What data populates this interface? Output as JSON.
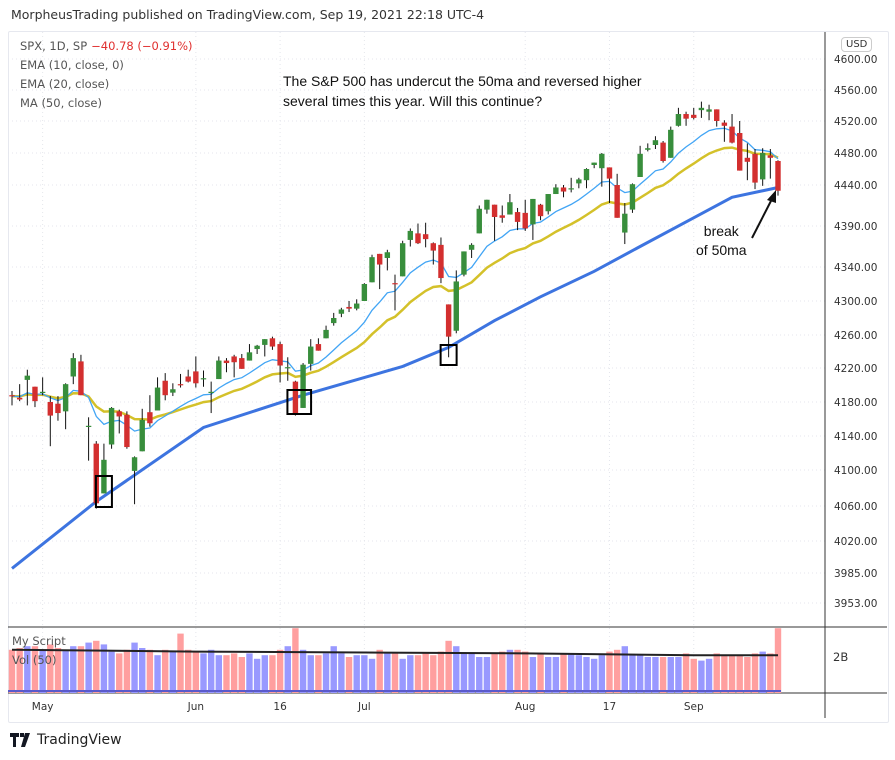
{
  "header": {
    "published": "MorpheusTrading published on TradingView.com, Sep 19, 2021 22:18 UTC-4"
  },
  "legend": {
    "symbol": "SPX, 1D, SP",
    "change": "−40.78 (−0.91%)",
    "ema10": "EMA (10, close, 0)",
    "ema20": "EMA (20, close)",
    "ma50": "MA (50, close)",
    "script": "My Script",
    "vol": "Vol (50)"
  },
  "annotation": {
    "line1": "The S&P 500 has undercut the 50ma and reversed higher",
    "line2": "several times this year.  Will this continue?",
    "break1": "break",
    "break2": "of 50ma"
  },
  "axis": {
    "currency": "USD",
    "volume_tick": "2B"
  },
  "footer": {
    "brand": "TradingView"
  },
  "colors": {
    "up": "#388e3c",
    "down": "#d32f2f",
    "ema10": "#42a5f5",
    "ema20": "#d4c12a",
    "ma50": "#3d74e0",
    "vol_up": "#9999ff",
    "vol_down": "#ff9f9f",
    "vol_ma": "#222222"
  },
  "chart_data": {
    "type": "candlestick",
    "scale": "log",
    "grid": true,
    "y_ticks": [
      "4600.00",
      "4560.00",
      "4520.00",
      "4480.00",
      "4440.00",
      "4390.00",
      "4340.00",
      "4300.00",
      "4260.00",
      "4220.00",
      "4180.00",
      "4140.00",
      "4100.00",
      "4060.00",
      "4020.00",
      "3985.00",
      "3953.00"
    ],
    "x_ticks": [
      {
        "label": "May",
        "date": "2021-05-03"
      },
      {
        "label": "Jun",
        "date": "2021-06-01"
      },
      {
        "label": "16",
        "date": "2021-06-16"
      },
      {
        "label": "Jul",
        "date": "2021-07-01"
      },
      {
        "label": "Aug",
        "date": "2021-08-02"
      },
      {
        "label": "17",
        "date": "2021-08-17"
      },
      {
        "label": "Sep",
        "date": "2021-09-01"
      }
    ],
    "candles_fields": [
      "date",
      "open",
      "high",
      "low",
      "close"
    ],
    "candles": [
      [
        "2021-04-27",
        4188,
        4193,
        4176,
        4187
      ],
      [
        "2021-04-28",
        4185,
        4201,
        4181,
        4183
      ],
      [
        "2021-04-29",
        4206,
        4218,
        4176,
        4211
      ],
      [
        "2021-04-30",
        4198,
        4198,
        4174,
        4181
      ],
      [
        "2021-05-03",
        4191,
        4209,
        4188,
        4192
      ],
      [
        "2021-05-04",
        4180,
        4187,
        4128,
        4164
      ],
      [
        "2021-05-05",
        4178,
        4187,
        4158,
        4167
      ],
      [
        "2021-05-06",
        4169,
        4202,
        4148,
        4201
      ],
      [
        "2021-05-07",
        4210,
        4238,
        4201,
        4232
      ],
      [
        "2021-05-10",
        4228,
        4236,
        4188,
        4188
      ],
      [
        "2021-05-11",
        4151,
        4162,
        4111,
        4152
      ],
      [
        "2021-05-12",
        4131,
        4134,
        4057,
        4063
      ],
      [
        "2021-05-13",
        4074,
        4131,
        4074,
        4112
      ],
      [
        "2021-05-14",
        4130,
        4174,
        4125,
        4173
      ],
      [
        "2021-05-17",
        4169,
        4171,
        4143,
        4163
      ],
      [
        "2021-05-18",
        4165,
        4169,
        4125,
        4127
      ],
      [
        "2021-05-19",
        4099,
        4116,
        4062,
        4115
      ],
      [
        "2021-05-20",
        4122,
        4172,
        4122,
        4159
      ],
      [
        "2021-05-21",
        4168,
        4188,
        4151,
        4155
      ],
      [
        "2021-05-24",
        4170,
        4209,
        4170,
        4197
      ],
      [
        "2021-05-25",
        4205,
        4214,
        4182,
        4188
      ],
      [
        "2021-05-26",
        4191,
        4202,
        4187,
        4195
      ],
      [
        "2021-05-27",
        4201,
        4213,
        4197,
        4200
      ],
      [
        "2021-05-28",
        4210,
        4218,
        4203,
        4204
      ],
      [
        "2021-06-01",
        4216,
        4234,
        4197,
        4202
      ],
      [
        "2021-06-02",
        4207,
        4217,
        4198,
        4208
      ],
      [
        "2021-06-03",
        4191,
        4204,
        4167,
        4192
      ],
      [
        "2021-06-04",
        4207,
        4234,
        4207,
        4229
      ],
      [
        "2021-06-07",
        4229,
        4232,
        4215,
        4226
      ],
      [
        "2021-06-08",
        4234,
        4236,
        4209,
        4227
      ],
      [
        "2021-06-09",
        4232,
        4237,
        4219,
        4219
      ],
      [
        "2021-06-10",
        4229,
        4249,
        4229,
        4239
      ],
      [
        "2021-06-11",
        4243,
        4248,
        4237,
        4247
      ],
      [
        "2021-06-14",
        4248,
        4255,
        4234,
        4255
      ],
      [
        "2021-06-15",
        4256,
        4258,
        4242,
        4246
      ],
      [
        "2021-06-16",
        4249,
        4252,
        4203,
        4223
      ],
      [
        "2021-06-17",
        4220,
        4233,
        4205,
        4221
      ],
      [
        "2021-06-18",
        4204,
        4205,
        4164,
        4166
      ],
      [
        "2021-06-21",
        4173,
        4226,
        4173,
        4224
      ],
      [
        "2021-06-22",
        4225,
        4255,
        4217,
        4246
      ],
      [
        "2021-06-23",
        4249,
        4256,
        4241,
        4241
      ],
      [
        "2021-06-24",
        4256,
        4271,
        4256,
        4266
      ],
      [
        "2021-06-25",
        4274,
        4286,
        4271,
        4280
      ],
      [
        "2021-06-28",
        4285,
        4292,
        4281,
        4290
      ],
      [
        "2021-06-29",
        4293,
        4300,
        4287,
        4291
      ],
      [
        "2021-06-30",
        4291,
        4302,
        4289,
        4297
      ],
      [
        "2021-07-01",
        4300,
        4321,
        4300,
        4320
      ],
      [
        "2021-07-02",
        4322,
        4355,
        4322,
        4352
      ],
      [
        "2021-07-06",
        4356,
        4356,
        4314,
        4343
      ],
      [
        "2021-07-07",
        4351,
        4361,
        4336,
        4358
      ],
      [
        "2021-07-08",
        4321,
        4331,
        4289,
        4320
      ],
      [
        "2021-07-09",
        4329,
        4372,
        4329,
        4369
      ],
      [
        "2021-07-12",
        4373,
        4387,
        4365,
        4384
      ],
      [
        "2021-07-13",
        4381,
        4393,
        4368,
        4369
      ],
      [
        "2021-07-14",
        4380,
        4394,
        4364,
        4374
      ],
      [
        "2021-07-15",
        4369,
        4370,
        4343,
        4360
      ],
      [
        "2021-07-16",
        4367,
        4376,
        4321,
        4327
      ],
      [
        "2021-07-19",
        4296,
        4296,
        4233,
        4258
      ],
      [
        "2021-07-20",
        4265,
        4336,
        4262,
        4323
      ],
      [
        "2021-07-21",
        4331,
        4359,
        4329,
        4359
      ],
      [
        "2021-07-22",
        4361,
        4369,
        4351,
        4367
      ],
      [
        "2021-07-23",
        4381,
        4415,
        4381,
        4411
      ],
      [
        "2021-07-26",
        4410,
        4422,
        4405,
        4422
      ],
      [
        "2021-07-27",
        4416,
        4416,
        4372,
        4401
      ],
      [
        "2021-07-28",
        4403,
        4415,
        4394,
        4400
      ],
      [
        "2021-07-29",
        4404,
        4429,
        4404,
        4419
      ],
      [
        "2021-07-30",
        4407,
        4412,
        4385,
        4395
      ],
      [
        "2021-08-02",
        4406,
        4422,
        4384,
        4387
      ],
      [
        "2021-08-03",
        4392,
        4423,
        4373,
        4423
      ],
      [
        "2021-08-04",
        4416,
        4417,
        4397,
        4402
      ],
      [
        "2021-08-05",
        4408,
        4429,
        4404,
        4429
      ],
      [
        "2021-08-06",
        4429,
        4441,
        4429,
        4437
      ],
      [
        "2021-08-09",
        4437,
        4440,
        4425,
        4432
      ],
      [
        "2021-08-10",
        4436,
        4449,
        4431,
        4436
      ],
      [
        "2021-08-11",
        4442,
        4449,
        4436,
        4447
      ],
      [
        "2021-08-12",
        4446,
        4461,
        4436,
        4460
      ],
      [
        "2021-08-13",
        4465,
        4468,
        4461,
        4468
      ],
      [
        "2021-08-16",
        4461,
        4480,
        4438,
        4479
      ],
      [
        "2021-08-17",
        4462,
        4462,
        4418,
        4448
      ],
      [
        "2021-08-18",
        4440,
        4454,
        4400,
        4400
      ],
      [
        "2021-08-19",
        4382,
        4418,
        4368,
        4405
      ],
      [
        "2021-08-20",
        4410,
        4442,
        4406,
        4441
      ],
      [
        "2021-08-23",
        4450,
        4489,
        4450,
        4479
      ],
      [
        "2021-08-24",
        4484,
        4492,
        4482,
        4486
      ],
      [
        "2021-08-25",
        4490,
        4501,
        4485,
        4496
      ],
      [
        "2021-08-26",
        4493,
        4495,
        4468,
        4470
      ],
      [
        "2021-08-27",
        4474,
        4513,
        4474,
        4509
      ],
      [
        "2021-08-30",
        4514,
        4537,
        4513,
        4529
      ],
      [
        "2021-08-31",
        4529,
        4532,
        4514,
        4523
      ],
      [
        "2021-09-01",
        4528,
        4537,
        4522,
        4524
      ],
      [
        "2021-09-02",
        4534,
        4545,
        4524,
        4537
      ],
      [
        "2021-09-03",
        4532,
        4541,
        4521,
        4535
      ],
      [
        "2021-09-07",
        4535,
        4535,
        4513,
        4520
      ],
      [
        "2021-09-08",
        4518,
        4521,
        4494,
        4514
      ],
      [
        "2021-09-09",
        4513,
        4529,
        4492,
        4493
      ],
      [
        "2021-09-10",
        4505,
        4520,
        4458,
        4458
      ],
      [
        "2021-09-13",
        4474,
        4492,
        4446,
        4469
      ],
      [
        "2021-09-14",
        4479,
        4485,
        4435,
        4443
      ],
      [
        "2021-09-15",
        4447,
        4486,
        4439,
        4480
      ],
      [
        "2021-09-16",
        4477,
        4485,
        4448,
        4474
      ],
      [
        "2021-09-17",
        4470,
        4471,
        4427,
        4433
      ]
    ],
    "volume_billions": [
      2.4,
      2.5,
      2.6,
      2.6,
      2.4,
      2.7,
      2.5,
      2.4,
      2.6,
      2.6,
      2.8,
      2.9,
      2.7,
      2.3,
      2.2,
      2.4,
      2.8,
      2.5,
      2.4,
      2.1,
      2.4,
      2.3,
      3.3,
      2.4,
      2.3,
      2.2,
      2.4,
      2.1,
      2.1,
      2.2,
      2.0,
      2.2,
      1.9,
      2.1,
      2.1,
      2.4,
      2.6,
      3.6,
      2.4,
      2.1,
      2.1,
      2.2,
      2.6,
      2.2,
      2.0,
      2.1,
      2.1,
      1.9,
      2.4,
      2.2,
      2.2,
      1.9,
      2.1,
      2.1,
      2.2,
      2.1,
      2.3,
      2.9,
      2.6,
      2.2,
      2.2,
      2.0,
      2.0,
      2.2,
      2.3,
      2.4,
      2.4,
      2.3,
      2.0,
      2.2,
      2.0,
      2.0,
      2.2,
      2.2,
      2.1,
      2.0,
      1.9,
      2.1,
      2.3,
      2.4,
      2.6,
      2.1,
      2.1,
      2.0,
      2.0,
      2.0,
      2.0,
      2.0,
      2.2,
      1.9,
      1.8,
      1.9,
      2.2,
      2.1,
      2.1,
      2.1,
      2.0,
      2.2,
      2.3,
      2.2,
      3.6
    ],
    "volume_ma50": [
      {
        "date": "2021-04-27",
        "value": 2.4
      },
      {
        "date": "2021-06-01",
        "value": 2.3
      },
      {
        "date": "2021-07-01",
        "value": 2.25
      },
      {
        "date": "2021-08-02",
        "value": 2.2
      },
      {
        "date": "2021-09-01",
        "value": 2.1
      },
      {
        "date": "2021-09-17",
        "value": 2.1
      }
    ],
    "ma50": [
      {
        "date": "2021-04-27",
        "value": 3990
      },
      {
        "date": "2021-05-12",
        "value": 4065
      },
      {
        "date": "2021-06-02",
        "value": 4150
      },
      {
        "date": "2021-06-21",
        "value": 4188
      },
      {
        "date": "2021-07-09",
        "value": 4222
      },
      {
        "date": "2021-07-19",
        "value": 4245
      },
      {
        "date": "2021-07-27",
        "value": 4277
      },
      {
        "date": "2021-08-04",
        "value": 4305
      },
      {
        "date": "2021-08-13",
        "value": 4335
      },
      {
        "date": "2021-08-23",
        "value": 4365
      },
      {
        "date": "2021-09-01",
        "value": 4400
      },
      {
        "date": "2021-09-09",
        "value": 4425
      },
      {
        "date": "2021-09-17",
        "value": 4437
      }
    ],
    "highlight_boxes": [
      "2021-05-13",
      "2021-06-18",
      "2021-06-21",
      "2021-07-19"
    ]
  }
}
